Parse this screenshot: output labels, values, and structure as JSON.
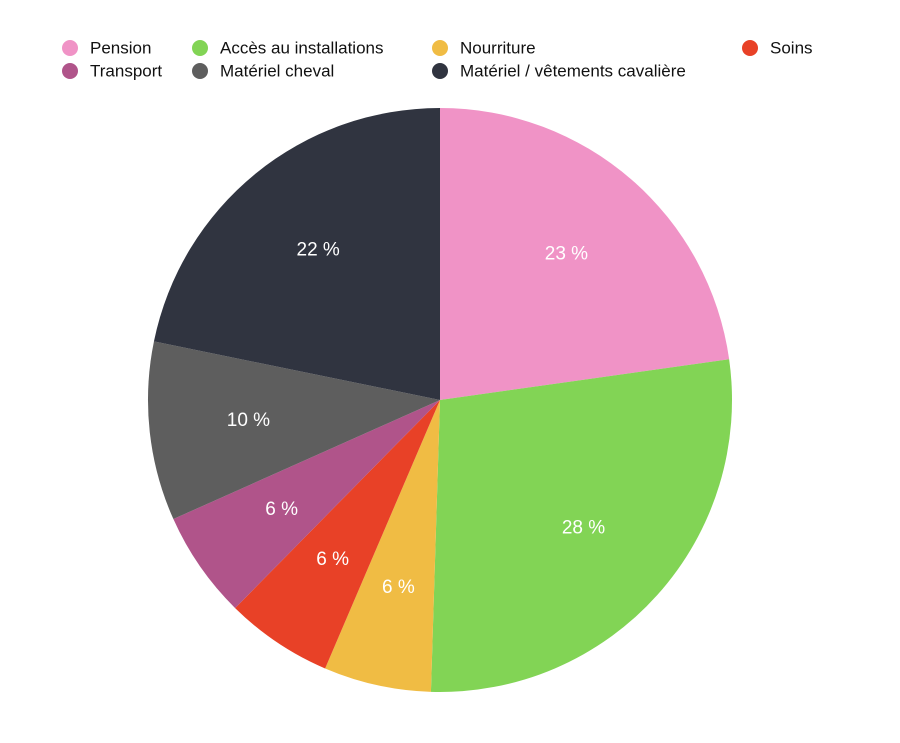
{
  "chart_data": {
    "type": "pie",
    "categories": [
      "Pension",
      "Accès au installations",
      "Nourriture",
      "Soins",
      "Transport",
      "Matériel cheval",
      "Matériel / vêtements cavalière"
    ],
    "values": [
      23,
      28,
      6,
      6,
      6,
      10,
      22
    ],
    "value_labels": [
      "23 %",
      "28 %",
      "6 %",
      "6 %",
      "6 %",
      "10 %",
      "22 %"
    ],
    "colors": [
      "#f093c6",
      "#82d455",
      "#f0bc44",
      "#e84127",
      "#b0548a",
      "#5e5e5e",
      "#303440"
    ]
  }
}
